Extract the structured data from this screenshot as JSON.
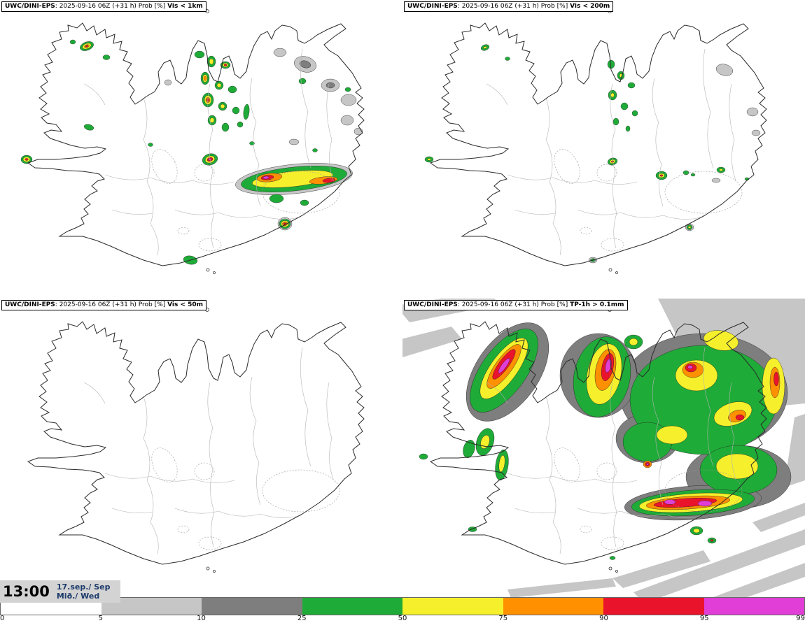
{
  "panels": [
    {
      "model": "UWC/DINI-EPS",
      "meta": ": 2025-09-16 06Z (+31 h) Prob [%] ",
      "threshold": "Vis < 1km"
    },
    {
      "model": "UWC/DINI-EPS",
      "meta": ": 2025-09-16 06Z (+31 h) Prob [%] ",
      "threshold": "Vis < 200m"
    },
    {
      "model": "UWC/DINI-EPS",
      "meta": ": 2025-09-16 06Z (+31 h) Prob [%] ",
      "threshold": "Vis < 50m"
    },
    {
      "model": "UWC/DINI-EPS",
      "meta": ": 2025-09-16 06Z (+31 h) Prob [%] ",
      "threshold": "TP-1h > 0.1mm"
    }
  ],
  "clock": {
    "time": "13:00",
    "date": "17.sep./ Sep",
    "day": "Mið./ Wed"
  },
  "colorbar": {
    "unit": "%",
    "ticks": [
      "0",
      "5",
      "10",
      "25",
      "50",
      "75",
      "90",
      "95",
      "99"
    ],
    "segments": [
      {
        "range": "0-5",
        "color": "#ffffff"
      },
      {
        "range": "5-10",
        "color": "#c6c6c6"
      },
      {
        "range": "10-25",
        "color": "#7e7e7e"
      },
      {
        "range": "25-50",
        "color": "#1fab38"
      },
      {
        "range": "50-75",
        "color": "#f5f02b"
      },
      {
        "range": "75-90",
        "color": "#ff9000"
      },
      {
        "range": "90-95",
        "color": "#ea132c"
      },
      {
        "range": "95-99",
        "color": "#e03ed6"
      }
    ]
  },
  "map": {
    "region": "Iceland",
    "source": "UWC/DINI-EPS ensemble probability maps"
  }
}
